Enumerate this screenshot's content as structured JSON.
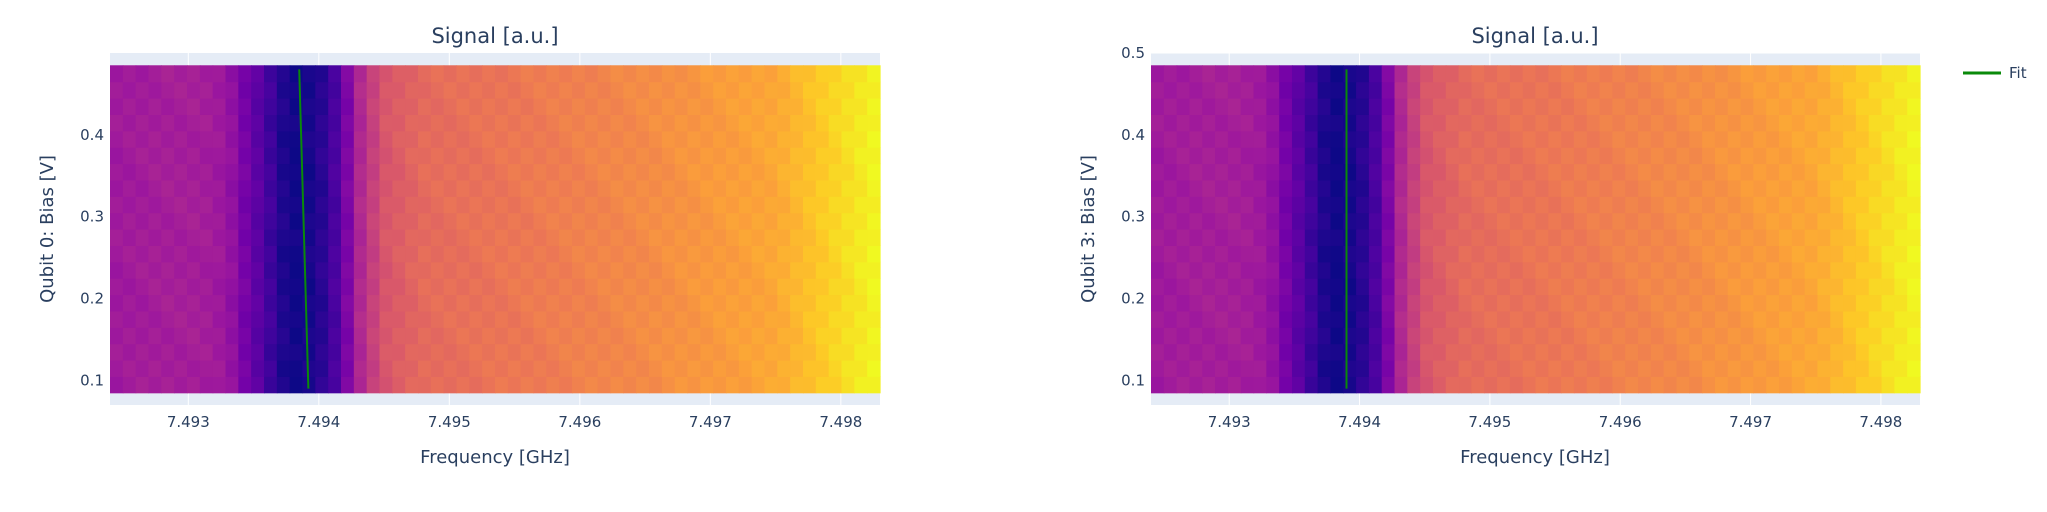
{
  "colors": {
    "plot_bg": "#e5ecf6",
    "fit_line": "#0a8a0a",
    "text": "#2a3f5f",
    "colorscale": [
      "#0d0887",
      "#46039f",
      "#7201a8",
      "#9c179e",
      "#bd3786",
      "#d8576b",
      "#ed7953",
      "#fb9f3a",
      "#fdca26",
      "#f0f921"
    ]
  },
  "legend": {
    "label": "Fit"
  },
  "chart_data": [
    {
      "type": "heatmap",
      "title": "Signal [a.u.]",
      "xlabel": "Frequency [GHz]",
      "ylabel": "Qubit 0: Bias [V]",
      "xlim": [
        7.4924,
        7.4983
      ],
      "ylim": [
        0.07,
        0.5
      ],
      "x_ticks": [
        "7.493",
        "7.494",
        "7.495",
        "7.496",
        "7.497",
        "7.498"
      ],
      "x_tick_values": [
        7.493,
        7.494,
        7.495,
        7.496,
        7.497,
        7.498
      ],
      "y_ticks": [
        "0.1",
        "0.2",
        "0.3",
        "0.4"
      ],
      "y_tick_values": [
        0.1,
        0.2,
        0.3,
        0.4
      ],
      "data_x_range": [
        7.4924,
        7.4983
      ],
      "data_y_range": [
        0.085,
        0.485
      ],
      "signal_profile": [
        [
          7.4924,
          0.34
        ],
        [
          7.4928,
          0.36
        ],
        [
          7.4931,
          0.36
        ],
        [
          7.4933,
          0.33
        ],
        [
          7.49345,
          0.22
        ],
        [
          7.4936,
          0.12
        ],
        [
          7.4937,
          0.04
        ],
        [
          7.49385,
          0.0
        ],
        [
          7.494,
          0.04
        ],
        [
          7.49415,
          0.14
        ],
        [
          7.4943,
          0.38
        ],
        [
          7.4945,
          0.55
        ],
        [
          7.4948,
          0.62
        ],
        [
          7.4955,
          0.66
        ],
        [
          7.4965,
          0.72
        ],
        [
          7.4975,
          0.8
        ],
        [
          7.4983,
          1.0
        ]
      ],
      "fit": {
        "name": "Fit",
        "x": [
          7.49385,
          7.49392
        ],
        "y": [
          0.48,
          0.09
        ]
      }
    },
    {
      "type": "heatmap",
      "title": "Signal [a.u.]",
      "xlabel": "Frequency [GHz]",
      "ylabel": "Qubit 3: Bias [V]",
      "xlim": [
        7.4924,
        7.4983
      ],
      "ylim": [
        0.07,
        0.5
      ],
      "x_ticks": [
        "7.493",
        "7.494",
        "7.495",
        "7.496",
        "7.497",
        "7.498"
      ],
      "x_tick_values": [
        7.493,
        7.494,
        7.495,
        7.496,
        7.497,
        7.498
      ],
      "y_ticks": [
        "0.1",
        "0.2",
        "0.3",
        "0.4",
        "0.5"
      ],
      "y_tick_values": [
        0.1,
        0.2,
        0.3,
        0.4,
        0.5
      ],
      "data_x_range": [
        7.4924,
        7.4983
      ],
      "data_y_range": [
        0.085,
        0.485
      ],
      "signal_profile": [
        [
          7.4924,
          0.34
        ],
        [
          7.4928,
          0.36
        ],
        [
          7.4931,
          0.36
        ],
        [
          7.4933,
          0.33
        ],
        [
          7.49345,
          0.22
        ],
        [
          7.4936,
          0.12
        ],
        [
          7.4937,
          0.04
        ],
        [
          7.49385,
          0.0
        ],
        [
          7.494,
          0.04
        ],
        [
          7.49415,
          0.14
        ],
        [
          7.4943,
          0.38
        ],
        [
          7.4945,
          0.55
        ],
        [
          7.4948,
          0.62
        ],
        [
          7.4955,
          0.66
        ],
        [
          7.4965,
          0.72
        ],
        [
          7.4975,
          0.8
        ],
        [
          7.4983,
          1.0
        ]
      ],
      "fit": {
        "name": "Fit",
        "x": [
          7.4939,
          7.4939
        ],
        "y": [
          0.48,
          0.09
        ]
      }
    }
  ]
}
